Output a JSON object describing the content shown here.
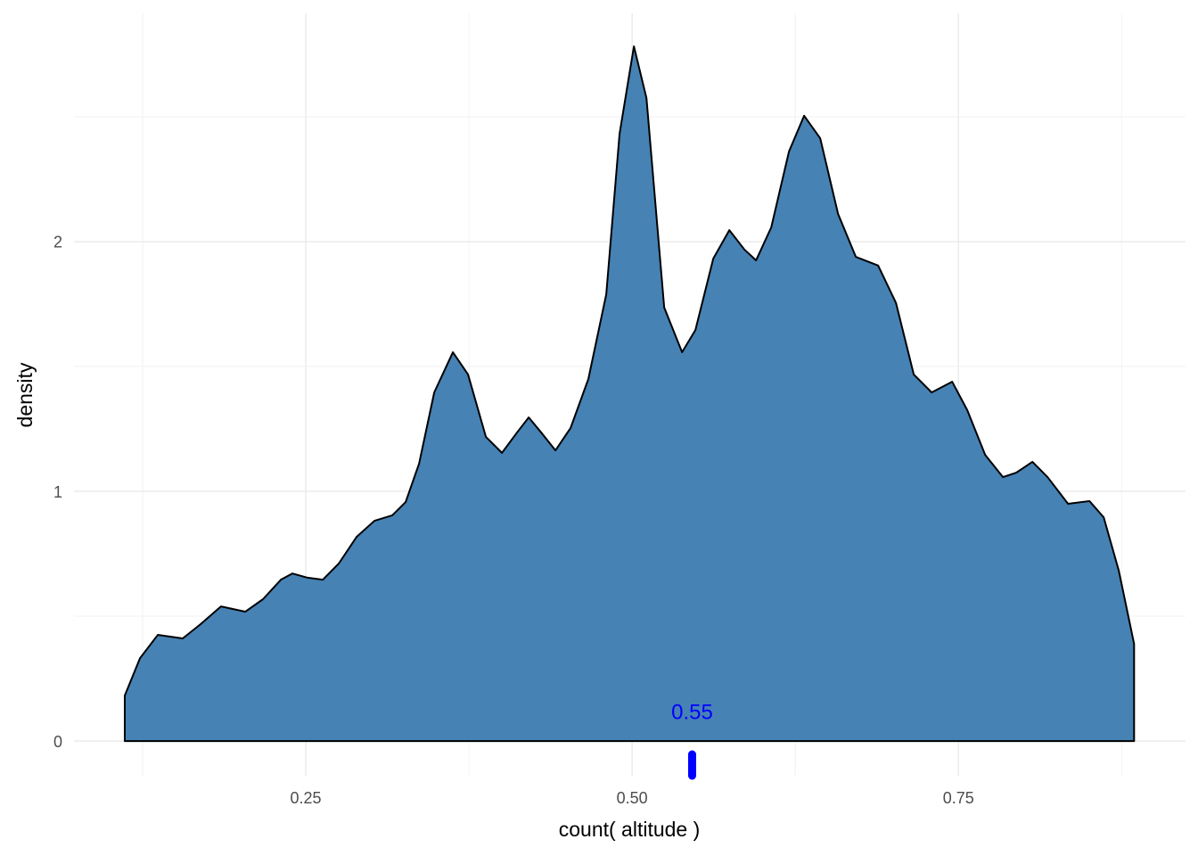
{
  "chart_data": {
    "type": "area",
    "x_label": "count( altitude )",
    "y_label": "density",
    "x": [
      0.1113,
      0.123,
      0.1366,
      0.1557,
      0.1694,
      0.185,
      0.2036,
      0.2172,
      0.2309,
      0.2398,
      0.2514,
      0.263,
      0.2753,
      0.289,
      0.3026,
      0.3163,
      0.3265,
      0.3368,
      0.3484,
      0.3627,
      0.3743,
      0.388,
      0.4003,
      0.4119,
      0.4208,
      0.4303,
      0.4413,
      0.4529,
      0.4665,
      0.4802,
      0.4904,
      0.5014,
      0.511,
      0.5246,
      0.5383,
      0.5485,
      0.5622,
      0.5745,
      0.5861,
      0.595,
      0.6066,
      0.6202,
      0.6318,
      0.6441,
      0.6578,
      0.6714,
      0.6885,
      0.7022,
      0.7158,
      0.7295,
      0.7452,
      0.7568,
      0.7705,
      0.7841,
      0.7944,
      0.8067,
      0.8183,
      0.834,
      0.8504,
      0.8613,
      0.8729,
      0.8846
    ],
    "values": [
      0.182,
      0.332,
      0.425,
      0.411,
      0.468,
      0.539,
      0.518,
      0.568,
      0.646,
      0.671,
      0.654,
      0.646,
      0.711,
      0.818,
      0.882,
      0.904,
      0.957,
      1.111,
      1.396,
      1.557,
      1.468,
      1.218,
      1.154,
      1.236,
      1.296,
      1.236,
      1.164,
      1.254,
      1.45,
      1.789,
      2.432,
      2.782,
      2.575,
      1.736,
      1.557,
      1.646,
      1.932,
      2.046,
      1.968,
      1.925,
      2.057,
      2.361,
      2.504,
      2.414,
      2.111,
      1.939,
      1.904,
      1.754,
      1.468,
      1.396,
      1.439,
      1.325,
      1.146,
      1.057,
      1.075,
      1.118,
      1.057,
      0.95,
      0.961,
      0.896,
      0.682,
      0.389
    ],
    "color": "#4682b4",
    "line_color": "#000000",
    "xlim": [
      0.0724,
      0.924
    ],
    "ylim": [
      -0.139,
      2.914
    ],
    "xticks": [
      {
        "value": 0.25,
        "label": "0.25"
      },
      {
        "value": 0.5,
        "label": "0.50"
      },
      {
        "value": 0.75,
        "label": "0.75"
      }
    ],
    "xminor": [
      0.125,
      0.375,
      0.625,
      0.875
    ],
    "yticks": [
      0,
      1,
      2
    ],
    "yminor": [
      0.5,
      1.5,
      2.5
    ],
    "grid": true,
    "annotation": {
      "x": 0.546,
      "y": 0.11,
      "label": "0.55",
      "color": "#0000ff"
    }
  }
}
